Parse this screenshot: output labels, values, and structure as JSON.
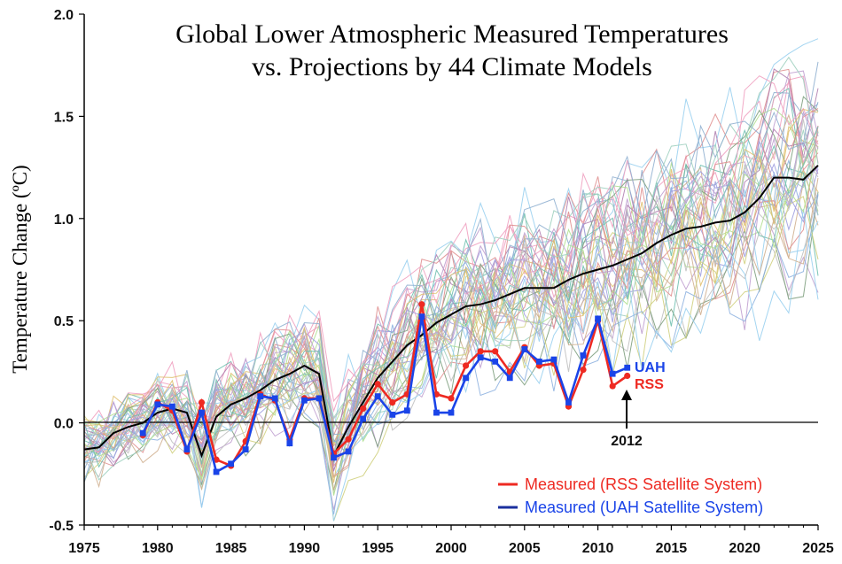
{
  "chart_data": {
    "type": "line",
    "title_lines": [
      "Global Lower Atmospheric Measured Temperatures",
      "vs. Projections by 44 Climate Models"
    ],
    "xlabel": "",
    "ylabel": "Temperature Change (ºC)",
    "xlim": [
      1975,
      2025
    ],
    "ylim": [
      -0.5,
      2.0
    ],
    "x_ticks": [
      1975,
      1980,
      1985,
      1990,
      1995,
      2000,
      2005,
      2010,
      2015,
      2020,
      2025
    ],
    "y_ticks": [
      -0.5,
      0.0,
      0.5,
      1.0,
      1.5,
      2.0
    ],
    "y_tick_labels": [
      "-0.5",
      "0.0",
      "0.5",
      "1.0",
      "1.5",
      "2.0"
    ],
    "grid": false,
    "model_count": 44,
    "model_colors": [
      "#9ad0f0",
      "#f0a0c0",
      "#b0e090",
      "#e0c070",
      "#a0a0e0",
      "#70c0b0",
      "#e09090",
      "#c0a0d0",
      "#90b0d0",
      "#d0b090",
      "#a0d0c0",
      "#c0c0c0",
      "#80a080",
      "#b080b0",
      "#d0d080",
      "#8fb3e0"
    ],
    "model_mean_color": "#000000",
    "series": [
      {
        "name": "UAH",
        "color": "#1a44e8",
        "x": [
          1979,
          1980,
          1981,
          1982,
          1983,
          1984,
          1985,
          1986,
          1987,
          1988,
          1989,
          1990,
          1991,
          1992,
          1993,
          1994,
          1995,
          1996,
          1997,
          1998,
          1999,
          2000,
          2001,
          2002,
          2003,
          2004,
          2005,
          2006,
          2007,
          2008,
          2009,
          2010,
          2011,
          2012
        ],
        "y": [
          -0.05,
          0.09,
          0.08,
          -0.13,
          0.05,
          -0.24,
          -0.2,
          -0.13,
          0.13,
          0.12,
          -0.1,
          0.11,
          0.12,
          -0.17,
          -0.14,
          0.02,
          0.13,
          0.04,
          0.06,
          0.52,
          0.05,
          0.05,
          0.22,
          0.32,
          0.3,
          0.22,
          0.36,
          0.3,
          0.31,
          0.1,
          0.33,
          0.51,
          0.24,
          0.27
        ]
      },
      {
        "name": "RSS",
        "color": "#ee2a22",
        "x": [
          1979,
          1980,
          1981,
          1982,
          1983,
          1984,
          1985,
          1986,
          1987,
          1988,
          1989,
          1990,
          1991,
          1992,
          1993,
          1994,
          1995,
          1996,
          1997,
          1998,
          1999,
          2000,
          2001,
          2002,
          2003,
          2004,
          2005,
          2006,
          2007,
          2008,
          2009,
          2010,
          2011,
          2012
        ],
        "y": [
          -0.06,
          0.1,
          0.06,
          -0.14,
          0.1,
          -0.18,
          -0.21,
          -0.09,
          0.14,
          0.11,
          -0.08,
          0.12,
          0.12,
          -0.15,
          -0.08,
          0.07,
          0.19,
          0.1,
          0.14,
          0.58,
          0.14,
          0.12,
          0.28,
          0.35,
          0.35,
          0.25,
          0.37,
          0.28,
          0.29,
          0.08,
          0.26,
          0.5,
          0.18,
          0.23
        ]
      },
      {
        "name": "model mean",
        "color": "#000000",
        "x": [
          1975,
          1976,
          1977,
          1978,
          1979,
          1980,
          1981,
          1982,
          1983,
          1984,
          1985,
          1986,
          1987,
          1988,
          1989,
          1990,
          1991,
          1992,
          1993,
          1994,
          1995,
          1996,
          1997,
          1998,
          1999,
          2000,
          2001,
          2002,
          2003,
          2004,
          2005,
          2006,
          2007,
          2008,
          2009,
          2010,
          2011,
          2012,
          2013,
          2014,
          2015,
          2016,
          2017,
          2018,
          2019,
          2020,
          2021,
          2022,
          2023,
          2024,
          2025
        ],
        "y": [
          -0.13,
          -0.12,
          -0.05,
          -0.02,
          0.0,
          0.05,
          0.07,
          0.05,
          -0.16,
          0.03,
          0.09,
          0.12,
          0.16,
          0.21,
          0.24,
          0.28,
          0.24,
          -0.16,
          -0.02,
          0.1,
          0.22,
          0.3,
          0.38,
          0.43,
          0.49,
          0.53,
          0.57,
          0.58,
          0.6,
          0.63,
          0.66,
          0.66,
          0.66,
          0.7,
          0.73,
          0.75,
          0.77,
          0.8,
          0.83,
          0.88,
          0.92,
          0.95,
          0.96,
          0.98,
          0.99,
          1.03,
          1.1,
          1.2,
          1.2,
          1.19,
          1.26
        ]
      }
    ],
    "series_labels": [
      {
        "text": "UAH",
        "color": "#1a44e8"
      },
      {
        "text": "RSS",
        "color": "#ee2a22"
      }
    ],
    "annotation": {
      "text": "2012",
      "x": 2012
    },
    "legend": {
      "position": "bottom-right",
      "entries": [
        {
          "label": "Measured (RSS Satellite System)",
          "text_color": "#ee2a22",
          "swatch_color": "#ee2a22"
        },
        {
          "label": "Measured (UAH Satellite System)",
          "text_color": "#1a44e8",
          "swatch_color": "#1a2f9e"
        }
      ]
    }
  }
}
